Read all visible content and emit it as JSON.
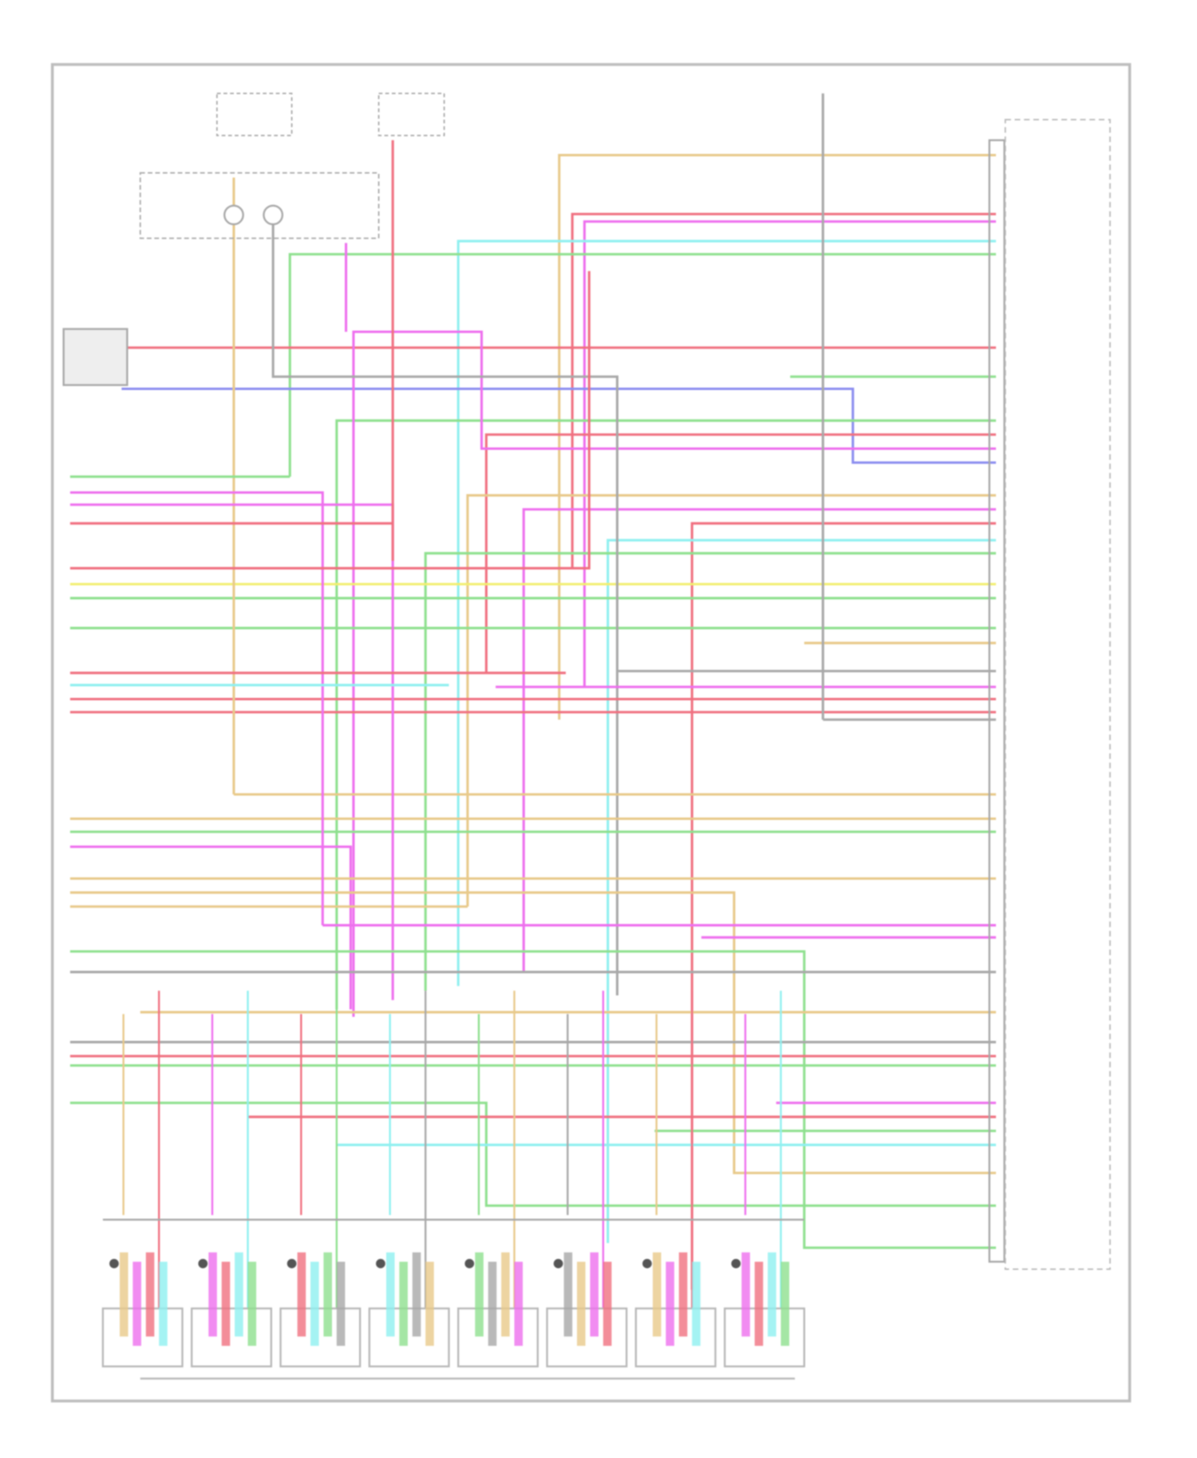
{
  "diagram": {
    "wire_colors": {
      "red": "#f07080",
      "pink": "#ee6fee",
      "tan": "#e8c98a",
      "yellow": "#f2ee70",
      "green": "#8ee08e",
      "lightgreen": "#b8f0a0",
      "cyan": "#8ff0f0",
      "blue": "#8c8ef0",
      "gray": "#a8a8a8",
      "frame": "#b8b8b8"
    },
    "injector_count": 8
  }
}
